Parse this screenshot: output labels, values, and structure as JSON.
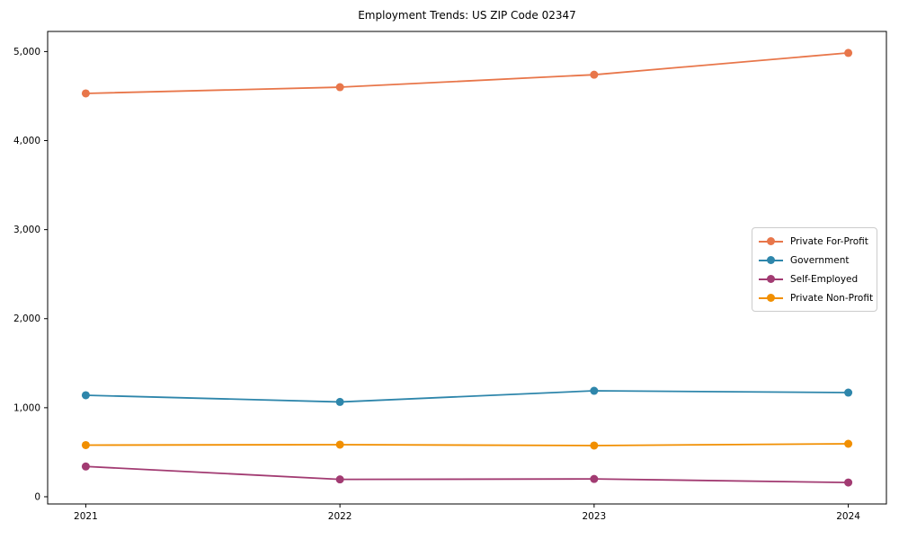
{
  "chart_data": {
    "type": "line",
    "title": "Employment Trends: US ZIP Code 02347",
    "xlabel": "",
    "ylabel": "",
    "x": [
      2021,
      2022,
      2023,
      2024
    ],
    "xtick_labels": [
      "2021",
      "2022",
      "2023",
      "2024"
    ],
    "yticks": [
      0,
      1000,
      2000,
      3000,
      4000,
      5000
    ],
    "ytick_labels": [
      "0",
      "1,000",
      "2,000",
      "3,000",
      "4,000",
      "5,000"
    ],
    "xlim": [
      2020.85,
      2024.15
    ],
    "ylim": [
      -81,
      5226
    ],
    "grid": false,
    "legend_position": "center right",
    "series": [
      {
        "name": "Private For-Profit",
        "color": "#E8764A",
        "values": [
          4530,
          4600,
          4740,
          4985
        ]
      },
      {
        "name": "Government",
        "color": "#2E86AB",
        "values": [
          1140,
          1065,
          1190,
          1170
        ]
      },
      {
        "name": "Self-Employed",
        "color": "#A23B72",
        "values": [
          340,
          195,
          200,
          160
        ]
      },
      {
        "name": "Private Non-Profit",
        "color": "#F18F01",
        "values": [
          580,
          585,
          575,
          595
        ]
      }
    ],
    "axis_color": "#000000",
    "background_color": "#ffffff"
  }
}
